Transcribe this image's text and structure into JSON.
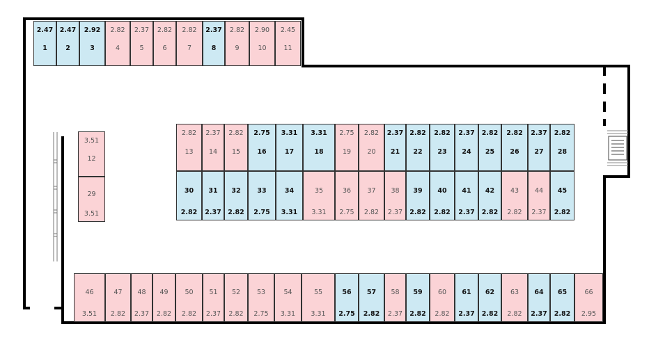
{
  "colors": {
    "available": "#cde9f3",
    "occupied": "#fbd3d6",
    "wall": "#000000",
    "text": "#333333"
  },
  "stalls": [
    {
      "id": "1",
      "value": "2.47",
      "status": "available"
    },
    {
      "id": "2",
      "value": "2.47",
      "status": "available"
    },
    {
      "id": "3",
      "value": "2.92",
      "status": "available"
    },
    {
      "id": "4",
      "value": "2.82",
      "status": "occupied"
    },
    {
      "id": "5",
      "value": "2.37",
      "status": "occupied"
    },
    {
      "id": "6",
      "value": "2.82",
      "status": "occupied"
    },
    {
      "id": "7",
      "value": "2.82",
      "status": "occupied"
    },
    {
      "id": "8",
      "value": "2.37",
      "status": "available"
    },
    {
      "id": "9",
      "value": "2.82",
      "status": "occupied"
    },
    {
      "id": "10",
      "value": "2.90",
      "status": "occupied"
    },
    {
      "id": "11",
      "value": "2.45",
      "status": "occupied"
    },
    {
      "id": "12",
      "value": "3.51",
      "status": "occupied"
    },
    {
      "id": "13",
      "value": "2.82",
      "status": "occupied"
    },
    {
      "id": "14",
      "value": "2.37",
      "status": "occupied"
    },
    {
      "id": "15",
      "value": "2.82",
      "status": "occupied"
    },
    {
      "id": "16",
      "value": "2.75",
      "status": "available"
    },
    {
      "id": "17",
      "value": "3.31",
      "status": "available"
    },
    {
      "id": "18",
      "value": "3.31",
      "status": "available"
    },
    {
      "id": "19",
      "value": "2.75",
      "status": "occupied"
    },
    {
      "id": "20",
      "value": "2.82",
      "status": "occupied"
    },
    {
      "id": "21",
      "value": "2.37",
      "status": "available"
    },
    {
      "id": "22",
      "value": "2.82",
      "status": "available"
    },
    {
      "id": "23",
      "value": "2.82",
      "status": "available"
    },
    {
      "id": "24",
      "value": "2.37",
      "status": "available"
    },
    {
      "id": "25",
      "value": "2.82",
      "status": "available"
    },
    {
      "id": "26",
      "value": "2.82",
      "status": "available"
    },
    {
      "id": "27",
      "value": "2.37",
      "status": "available"
    },
    {
      "id": "28",
      "value": "2.82",
      "status": "available"
    },
    {
      "id": "29",
      "value": "3.51",
      "status": "occupied"
    },
    {
      "id": "30",
      "value": "2.82",
      "status": "available"
    },
    {
      "id": "31",
      "value": "2.37",
      "status": "available"
    },
    {
      "id": "32",
      "value": "2.82",
      "status": "available"
    },
    {
      "id": "33",
      "value": "2.75",
      "status": "available"
    },
    {
      "id": "34",
      "value": "3.31",
      "status": "available"
    },
    {
      "id": "35",
      "value": "3.31",
      "status": "occupied"
    },
    {
      "id": "36",
      "value": "2.75",
      "status": "occupied"
    },
    {
      "id": "37",
      "value": "2.82",
      "status": "occupied"
    },
    {
      "id": "38",
      "value": "2.37",
      "status": "occupied"
    },
    {
      "id": "39",
      "value": "2.82",
      "status": "available"
    },
    {
      "id": "40",
      "value": "2.82",
      "status": "available"
    },
    {
      "id": "41",
      "value": "2.37",
      "status": "available"
    },
    {
      "id": "42",
      "value": "2.82",
      "status": "available"
    },
    {
      "id": "43",
      "value": "2.82",
      "status": "occupied"
    },
    {
      "id": "44",
      "value": "2.37",
      "status": "occupied"
    },
    {
      "id": "45",
      "value": "2.82",
      "status": "available"
    },
    {
      "id": "46",
      "value": "3.51",
      "status": "occupied"
    },
    {
      "id": "47",
      "value": "2.82",
      "status": "occupied"
    },
    {
      "id": "48",
      "value": "2.37",
      "status": "occupied"
    },
    {
      "id": "49",
      "value": "2.82",
      "status": "occupied"
    },
    {
      "id": "50",
      "value": "2.82",
      "status": "occupied"
    },
    {
      "id": "51",
      "value": "2.37",
      "status": "occupied"
    },
    {
      "id": "52",
      "value": "2.82",
      "status": "occupied"
    },
    {
      "id": "53",
      "value": "2.75",
      "status": "occupied"
    },
    {
      "id": "54",
      "value": "3.31",
      "status": "occupied"
    },
    {
      "id": "55",
      "value": "3.31",
      "status": "occupied"
    },
    {
      "id": "56",
      "value": "2.75",
      "status": "available"
    },
    {
      "id": "57",
      "value": "2.82",
      "status": "available"
    },
    {
      "id": "58",
      "value": "2.37",
      "status": "occupied"
    },
    {
      "id": "59",
      "value": "2.82",
      "status": "available"
    },
    {
      "id": "60",
      "value": "2.82",
      "status": "occupied"
    },
    {
      "id": "61",
      "value": "2.37",
      "status": "available"
    },
    {
      "id": "62",
      "value": "2.82",
      "status": "available"
    },
    {
      "id": "63",
      "value": "2.82",
      "status": "occupied"
    },
    {
      "id": "64",
      "value": "2.37",
      "status": "available"
    },
    {
      "id": "65",
      "value": "2.82",
      "status": "available"
    },
    {
      "id": "66",
      "value": "2.95",
      "status": "occupied"
    }
  ]
}
